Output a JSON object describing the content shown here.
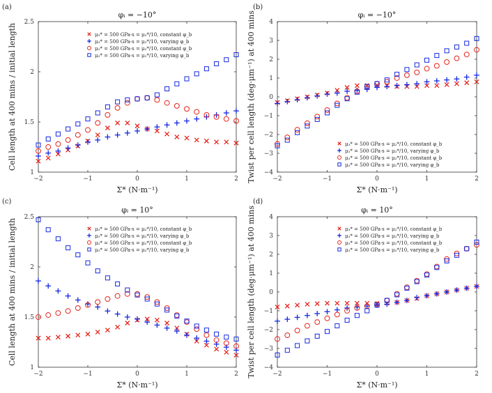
{
  "colors": {
    "red": "#e8231a",
    "blue": "#1428e0"
  },
  "legend_labels": [
    "μ₃* = 500 GPa·s = μ₂*/10, constant φ_b",
    "μ₃* = 500 GPa·s = μ₂*/10, varying φ_b",
    "μ₃* = 500 GPa·s = μ₂*/10, constant φ_b",
    "μ₃* = 500 GPa·s = μ₂*/10, varying φ_b"
  ],
  "chart_data": [
    {
      "type": "scatter",
      "label": "(a)",
      "title": "φᵢ = −10°",
      "xlabel": "Σ* (N·m⁻¹)",
      "ylabel": "Cell length at 400 mins / initial length",
      "xlim": [
        -2,
        2
      ],
      "ylim": [
        1,
        2.5
      ],
      "xticks": [
        -2,
        -1,
        0,
        1,
        2
      ],
      "xtick_labels": [
        "−2",
        "−1",
        "0",
        "1",
        "2"
      ],
      "yticks": [
        1,
        1.5,
        2,
        2.5
      ],
      "ytick_labels": [
        "1",
        "1.5",
        "2",
        "2.5"
      ],
      "legend_position": "top-left",
      "x": [
        -2,
        -1.8,
        -1.6,
        -1.4,
        -1.2,
        -1,
        -0.8,
        -0.6,
        -0.4,
        -0.2,
        0,
        0.2,
        0.4,
        0.6,
        0.8,
        1,
        1.2,
        1.4,
        1.6,
        1.8,
        2
      ],
      "series": [
        {
          "name": "red-x",
          "marker": "x",
          "color": "red",
          "values": [
            1.11,
            1.14,
            1.18,
            1.22,
            1.26,
            1.31,
            1.37,
            1.44,
            1.49,
            1.49,
            1.46,
            1.43,
            1.41,
            1.38,
            1.35,
            1.34,
            1.32,
            1.31,
            1.3,
            1.3,
            1.29
          ]
        },
        {
          "name": "blue-plus",
          "marker": "+",
          "color": "blue",
          "values": [
            1.16,
            1.19,
            1.21,
            1.24,
            1.27,
            1.3,
            1.32,
            1.35,
            1.37,
            1.39,
            1.41,
            1.43,
            1.45,
            1.47,
            1.49,
            1.51,
            1.53,
            1.55,
            1.57,
            1.59,
            1.61
          ]
        },
        {
          "name": "red-circle",
          "marker": "o",
          "color": "red",
          "values": [
            1.21,
            1.25,
            1.28,
            1.32,
            1.37,
            1.42,
            1.49,
            1.57,
            1.64,
            1.69,
            1.73,
            1.74,
            1.72,
            1.69,
            1.66,
            1.63,
            1.6,
            1.57,
            1.55,
            1.53,
            1.51
          ]
        },
        {
          "name": "blue-square",
          "marker": "s",
          "color": "blue",
          "values": [
            1.27,
            1.33,
            1.38,
            1.43,
            1.48,
            1.53,
            1.59,
            1.65,
            1.7,
            1.72,
            1.73,
            1.74,
            1.77,
            1.83,
            1.88,
            1.93,
            1.98,
            2.03,
            2.08,
            2.12,
            2.17
          ]
        }
      ]
    },
    {
      "type": "scatter",
      "label": "(b)",
      "title": "φᵢ = −10°",
      "xlabel": "Σ* (N·m⁻¹)",
      "ylabel": "Twist per cell length (deg·μm⁻¹) at 400 mins",
      "xlim": [
        -2,
        2
      ],
      "ylim": [
        -4,
        4
      ],
      "xticks": [
        -2,
        -1,
        0,
        1,
        2
      ],
      "xtick_labels": [
        "−2",
        "−1",
        "0",
        "1",
        "2"
      ],
      "yticks": [
        -4,
        -3,
        -2,
        -1,
        0,
        1,
        2,
        3,
        4
      ],
      "ytick_labels": [
        "−4",
        "−3",
        "−2",
        "−1",
        "0",
        "1",
        "2",
        "3",
        "4"
      ],
      "legend_position": "bottom-left",
      "x": [
        -2,
        -1.8,
        -1.6,
        -1.4,
        -1.2,
        -1,
        -0.8,
        -0.6,
        -0.4,
        -0.2,
        0,
        0.2,
        0.4,
        0.6,
        0.8,
        1,
        1.2,
        1.4,
        1.6,
        1.8,
        2
      ],
      "series": [
        {
          "name": "red-x",
          "marker": "x",
          "color": "red",
          "values": [
            -0.3,
            -0.2,
            -0.1,
            0.0,
            0.1,
            0.2,
            0.35,
            0.5,
            0.6,
            0.6,
            0.62,
            0.6,
            0.55,
            0.55,
            0.55,
            0.6,
            0.6,
            0.65,
            0.7,
            0.75,
            0.8
          ]
        },
        {
          "name": "blue-plus",
          "marker": "+",
          "color": "blue",
          "values": [
            -0.35,
            -0.25,
            -0.15,
            -0.05,
            0.05,
            0.15,
            0.2,
            0.3,
            0.35,
            0.4,
            0.5,
            0.55,
            0.6,
            0.65,
            0.7,
            0.8,
            0.85,
            0.9,
            0.95,
            1.05,
            1.15
          ]
        },
        {
          "name": "red-circle",
          "marker": "o",
          "color": "red",
          "values": [
            -2.5,
            -2.15,
            -1.75,
            -1.4,
            -1.05,
            -0.7,
            -0.35,
            -0.05,
            0.3,
            0.55,
            0.7,
            0.8,
            1.0,
            1.15,
            1.3,
            1.5,
            1.65,
            1.85,
            2.05,
            2.25,
            2.5
          ]
        },
        {
          "name": "blue-square",
          "marker": "s",
          "color": "blue",
          "values": [
            -2.6,
            -2.3,
            -1.9,
            -1.55,
            -1.2,
            -0.85,
            -0.45,
            -0.1,
            0.25,
            0.55,
            0.7,
            0.9,
            1.2,
            1.45,
            1.7,
            1.95,
            2.2,
            2.45,
            2.65,
            2.85,
            3.1
          ]
        }
      ]
    },
    {
      "type": "scatter",
      "label": "(c)",
      "title": "φᵢ = 10°",
      "xlabel": "Σ* (N·m⁻¹)",
      "ylabel": "Cell length at 400 mins / initial length",
      "xlim": [
        -2,
        2
      ],
      "ylim": [
        1,
        2.5
      ],
      "xticks": [
        -2,
        -1,
        0,
        1,
        2
      ],
      "xtick_labels": [
        "−2",
        "−1",
        "0",
        "1",
        "2"
      ],
      "yticks": [
        1,
        1.5,
        2,
        2.5
      ],
      "ytick_labels": [
        "1",
        "1.5",
        "2",
        "2.5"
      ],
      "legend_position": "top-right",
      "x": [
        -2,
        -1.8,
        -1.6,
        -1.4,
        -1.2,
        -1,
        -0.8,
        -0.6,
        -0.4,
        -0.2,
        0,
        0.2,
        0.4,
        0.6,
        0.8,
        1,
        1.2,
        1.4,
        1.6,
        1.8,
        2
      ],
      "series": [
        {
          "name": "red-x",
          "marker": "x",
          "color": "red",
          "values": [
            1.29,
            1.29,
            1.3,
            1.31,
            1.32,
            1.33,
            1.35,
            1.37,
            1.4,
            1.44,
            1.47,
            1.48,
            1.47,
            1.44,
            1.39,
            1.33,
            1.26,
            1.22,
            1.18,
            1.15,
            1.12
          ]
        },
        {
          "name": "blue-plus",
          "marker": "+",
          "color": "blue",
          "values": [
            1.86,
            1.81,
            1.76,
            1.71,
            1.67,
            1.63,
            1.6,
            1.56,
            1.53,
            1.5,
            1.48,
            1.45,
            1.42,
            1.39,
            1.36,
            1.32,
            1.29,
            1.26,
            1.23,
            1.2,
            1.17
          ]
        },
        {
          "name": "red-circle",
          "marker": "o",
          "color": "red",
          "values": [
            1.5,
            1.52,
            1.54,
            1.56,
            1.59,
            1.62,
            1.65,
            1.68,
            1.71,
            1.73,
            1.73,
            1.7,
            1.65,
            1.59,
            1.52,
            1.45,
            1.38,
            1.32,
            1.27,
            1.24,
            1.21
          ]
        },
        {
          "name": "blue-square",
          "marker": "s",
          "color": "blue",
          "values": [
            2.47,
            2.37,
            2.28,
            2.19,
            2.12,
            2.04,
            1.96,
            1.89,
            1.83,
            1.77,
            1.72,
            1.68,
            1.63,
            1.57,
            1.51,
            1.46,
            1.41,
            1.37,
            1.33,
            1.3,
            1.28
          ]
        }
      ]
    },
    {
      "type": "scatter",
      "label": "(d)",
      "title": "φᵢ = 10°",
      "xlabel": "Σ* (N·m⁻¹)",
      "ylabel": "Twist per cell length (deg·μm⁻¹) at 400 mins",
      "xlim": [
        -2,
        2
      ],
      "ylim": [
        -4,
        4
      ],
      "xticks": [
        -2,
        -1,
        0,
        1,
        2
      ],
      "xtick_labels": [
        "−2",
        "−1",
        "0",
        "1",
        "2"
      ],
      "yticks": [
        -4,
        -3,
        -2,
        -1,
        0,
        1,
        2,
        3,
        4
      ],
      "ytick_labels": [
        "−4",
        "−3",
        "−2",
        "−1",
        "0",
        "1",
        "2",
        "3",
        "4"
      ],
      "legend_position": "top-left",
      "x": [
        -2,
        -1.8,
        -1.6,
        -1.4,
        -1.2,
        -1,
        -0.8,
        -0.6,
        -0.4,
        -0.2,
        0,
        0.2,
        0.4,
        0.6,
        0.8,
        1,
        1.2,
        1.4,
        1.6,
        1.8,
        2
      ],
      "series": [
        {
          "name": "red-x",
          "marker": "x",
          "color": "red",
          "values": [
            -0.8,
            -0.75,
            -0.7,
            -0.65,
            -0.62,
            -0.6,
            -0.6,
            -0.6,
            -0.6,
            -0.6,
            -0.62,
            -0.6,
            -0.55,
            -0.45,
            -0.35,
            -0.2,
            -0.1,
            0.0,
            0.1,
            0.2,
            0.3
          ]
        },
        {
          "name": "blue-plus",
          "marker": "+",
          "color": "blue",
          "values": [
            -1.55,
            -1.45,
            -1.35,
            -1.25,
            -1.15,
            -1.05,
            -0.95,
            -0.85,
            -0.8,
            -0.75,
            -0.7,
            -0.65,
            -0.55,
            -0.45,
            -0.3,
            -0.2,
            -0.1,
            0.0,
            0.1,
            0.2,
            0.3
          ]
        },
        {
          "name": "red-circle",
          "marker": "o",
          "color": "red",
          "values": [
            -2.5,
            -2.3,
            -2.05,
            -1.8,
            -1.6,
            -1.4,
            -1.2,
            -1.0,
            -0.85,
            -0.75,
            -0.65,
            -0.45,
            -0.1,
            0.25,
            0.6,
            0.95,
            1.35,
            1.75,
            2.05,
            2.3,
            2.5
          ]
        },
        {
          "name": "blue-square",
          "marker": "s",
          "color": "blue",
          "values": [
            -3.35,
            -3.1,
            -2.85,
            -2.6,
            -2.35,
            -2.1,
            -1.8,
            -1.5,
            -1.25,
            -1.0,
            -0.7,
            -0.45,
            -0.15,
            0.2,
            0.55,
            0.9,
            1.3,
            1.65,
            1.95,
            2.3,
            2.65
          ]
        }
      ]
    }
  ]
}
